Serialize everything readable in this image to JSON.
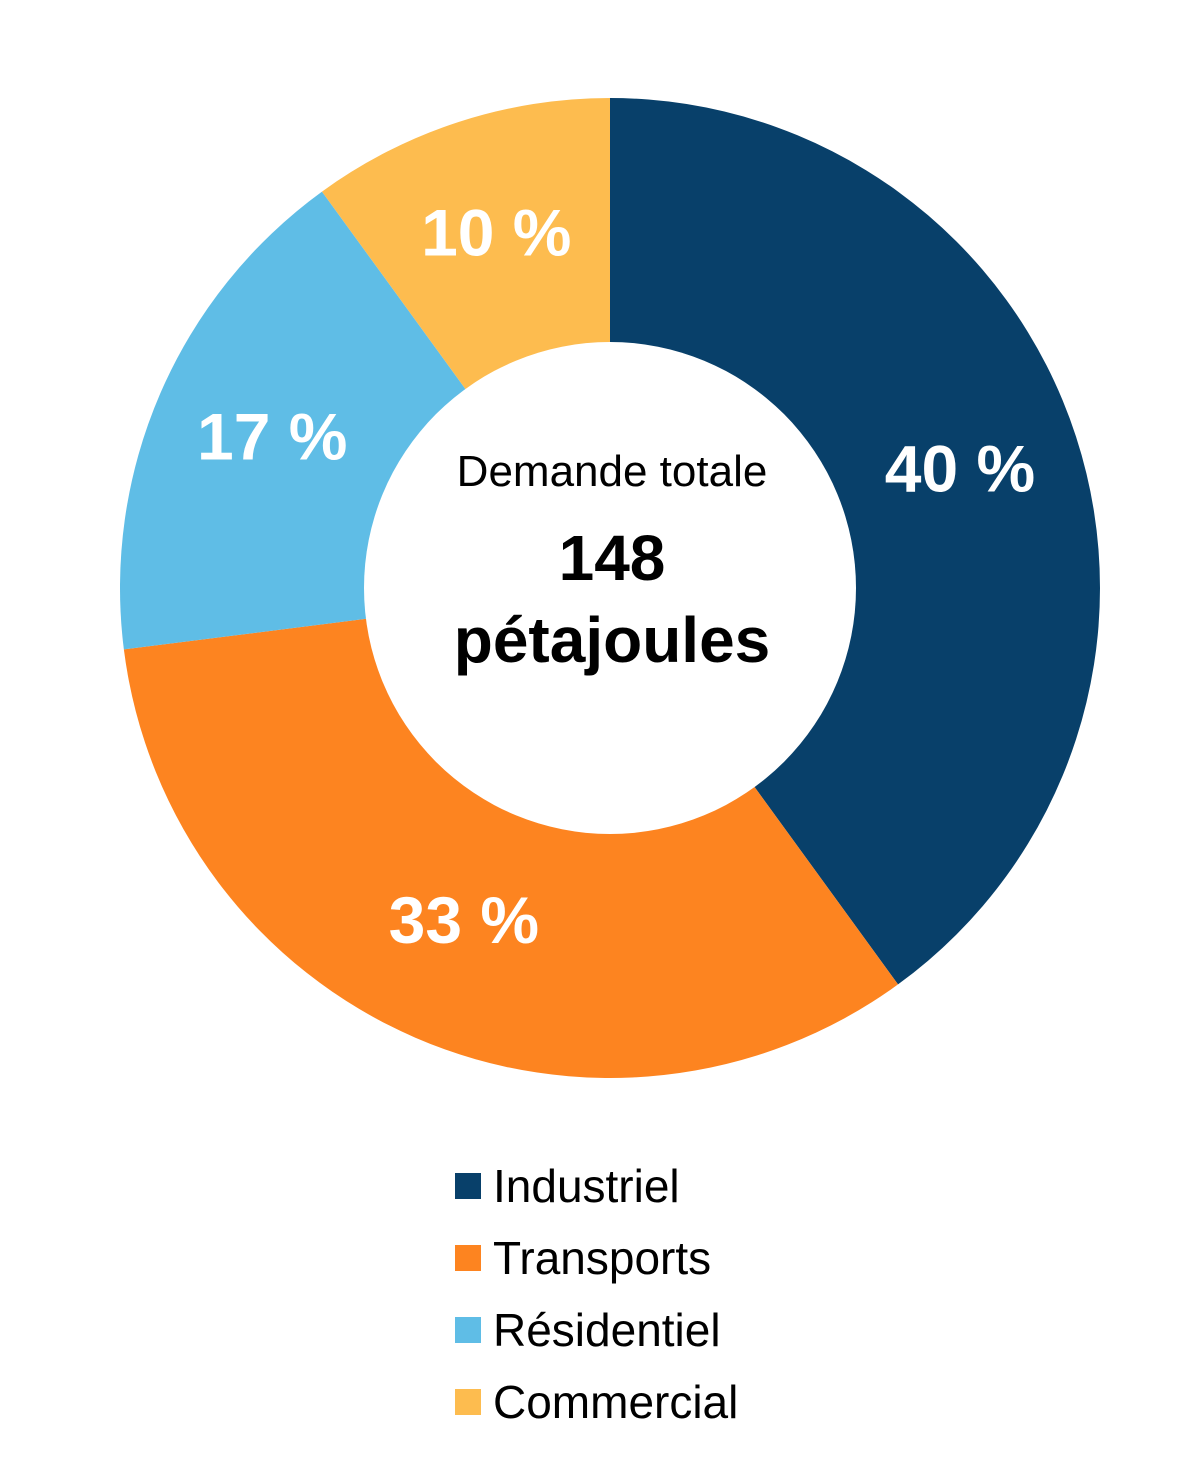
{
  "chart_data": {
    "type": "pie",
    "variant": "donut",
    "categories": [
      "Industriel",
      "Transports",
      "Résidentiel",
      "Commercial"
    ],
    "values": [
      40,
      33,
      17,
      10
    ],
    "value_labels": [
      "40 %",
      "33 %",
      "17 %",
      "10 %"
    ],
    "colors": [
      "#08406a",
      "#fd8420",
      "#5fbde6",
      "#fdbc4f"
    ],
    "center": {
      "caption": "Demande totale",
      "value_line1": "148",
      "value_line2": "pétajoules"
    },
    "legend": {
      "placement": "bottom",
      "entries": [
        "Industriel",
        "Transports",
        "Résidentiel",
        "Commercial"
      ]
    }
  }
}
